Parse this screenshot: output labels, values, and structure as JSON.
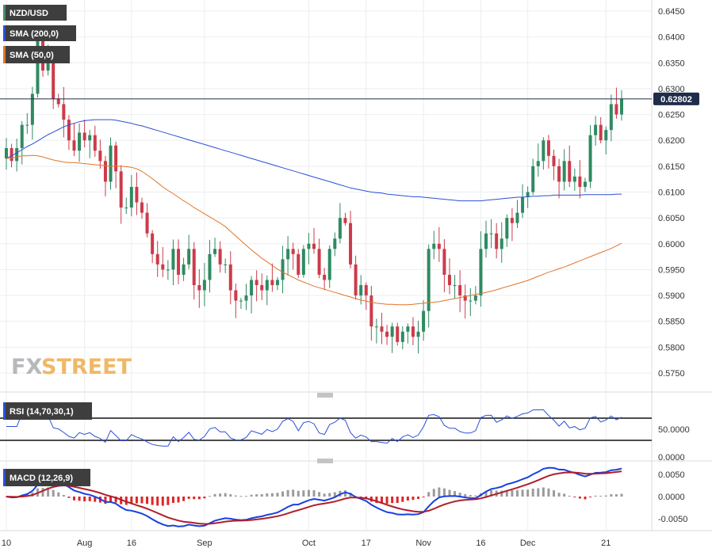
{
  "chart_data": {
    "type": "candlestick",
    "symbol": "NZD/USD",
    "current_price_label": "0.62802",
    "x_tick_labels": [
      {
        "label": "10",
        "index": 0
      },
      {
        "label": "Aug",
        "index": 15
      },
      {
        "label": "16",
        "index": 24
      },
      {
        "label": "Sep",
        "index": 38
      },
      {
        "label": "Oct",
        "index": 58
      },
      {
        "label": "17",
        "index": 69
      },
      {
        "label": "Nov",
        "index": 80
      },
      {
        "label": "16",
        "index": 91
      },
      {
        "label": "Dec",
        "index": 100
      },
      {
        "label": "21",
        "index": 115
      }
    ],
    "price_panel": {
      "y_ticks": [
        "0.6450",
        "0.6400",
        "0.6350",
        "0.6300",
        "0.6250",
        "0.6200",
        "0.6150",
        "0.6100",
        "0.6050",
        "0.6000",
        "0.5950",
        "0.5900",
        "0.5850",
        "0.5800",
        "0.5750"
      ],
      "ylim": [
        0.5715,
        0.6475
      ],
      "legend": [
        {
          "label": "NZD/USD",
          "color": "#4a8a6a"
        },
        {
          "label": "SMA (200,0)",
          "color": "#2b4fd8"
        },
        {
          "label": "SMA (50,0)",
          "color": "#e0752a"
        }
      ],
      "close": [
        0.6185,
        0.616,
        0.6185,
        0.623,
        0.623,
        0.629,
        0.6395,
        0.6335,
        0.636,
        0.628,
        0.627,
        0.624,
        0.62,
        0.618,
        0.6215,
        0.62,
        0.621,
        0.618,
        0.616,
        0.612,
        0.619,
        0.614,
        0.607,
        0.607,
        0.611,
        0.608,
        0.606,
        0.602,
        0.598,
        0.596,
        0.595,
        0.595,
        0.599,
        0.594,
        0.596,
        0.599,
        0.592,
        0.591,
        0.593,
        0.598,
        0.599,
        0.596,
        0.596,
        0.591,
        0.589,
        0.589,
        0.59,
        0.593,
        0.592,
        0.591,
        0.593,
        0.592,
        0.593,
        0.597,
        0.599,
        0.598,
        0.594,
        0.599,
        0.6,
        0.599,
        0.594,
        0.593,
        0.599,
        0.601,
        0.605,
        0.604,
        0.596,
        0.59,
        0.592,
        0.59,
        0.584,
        0.584,
        0.583,
        0.582,
        0.584,
        0.581,
        0.583,
        0.584,
        0.582,
        0.583,
        0.587,
        0.599,
        0.6,
        0.599,
        0.594,
        0.592,
        0.592,
        0.59,
        0.589,
        0.589,
        0.59,
        0.599,
        0.602,
        0.602,
        0.599,
        0.601,
        0.605,
        0.604,
        0.606,
        0.609,
        0.61,
        0.615,
        0.616,
        0.62,
        0.617,
        0.615,
        0.612,
        0.616,
        0.612,
        0.613,
        0.611,
        0.612,
        0.621,
        0.623,
        0.62,
        0.622,
        0.627,
        0.625,
        0.628
      ],
      "sma200": [
        0.6165,
        0.617,
        0.6176,
        0.6182,
        0.6188,
        0.6193,
        0.6199,
        0.6205,
        0.6211,
        0.6216,
        0.6221,
        0.6226,
        0.623,
        0.6233,
        0.6236,
        0.6238,
        0.6239,
        0.624,
        0.624,
        0.624,
        0.624,
        0.6239,
        0.6237,
        0.6235,
        0.6233,
        0.623,
        0.6228,
        0.6225,
        0.6222,
        0.6219,
        0.6216,
        0.6213,
        0.621,
        0.6207,
        0.6204,
        0.6201,
        0.6198,
        0.6195,
        0.6192,
        0.6189,
        0.6186,
        0.6183,
        0.618,
        0.6177,
        0.6174,
        0.6171,
        0.6168,
        0.6165,
        0.6162,
        0.6159,
        0.6156,
        0.6153,
        0.615,
        0.6147,
        0.6144,
        0.6141,
        0.6138,
        0.6135,
        0.6132,
        0.6129,
        0.6126,
        0.6123,
        0.612,
        0.6117,
        0.6114,
        0.6111,
        0.6108,
        0.6106,
        0.6104,
        0.6102,
        0.61,
        0.6099,
        0.6098,
        0.6096,
        0.6095,
        0.6094,
        0.6093,
        0.6092,
        0.6091,
        0.6091,
        0.609,
        0.6089,
        0.6088,
        0.6087,
        0.6086,
        0.6085,
        0.6084,
        0.6083,
        0.6083,
        0.6083,
        0.6083,
        0.6083,
        0.6084,
        0.6085,
        0.6086,
        0.6087,
        0.6088,
        0.6089,
        0.609,
        0.609,
        0.6091,
        0.6092,
        0.6092,
        0.6093,
        0.6093,
        0.6094,
        0.6094,
        0.6094,
        0.6094,
        0.6094,
        0.6094,
        0.6095,
        0.6095,
        0.6095,
        0.6095,
        0.6095,
        0.6095,
        0.6096,
        0.6096
      ],
      "sma50": [
        0.6165,
        0.6166,
        0.6168,
        0.617,
        0.617,
        0.6171,
        0.617,
        0.6168,
        0.6165,
        0.6162,
        0.616,
        0.6158,
        0.6157,
        0.6157,
        0.6156,
        0.6155,
        0.6154,
        0.6153,
        0.6152,
        0.6151,
        0.615,
        0.615,
        0.615,
        0.6149,
        0.6148,
        0.6145,
        0.614,
        0.6133,
        0.6126,
        0.6118,
        0.611,
        0.6103,
        0.6097,
        0.609,
        0.6083,
        0.6077,
        0.607,
        0.6064,
        0.6058,
        0.6052,
        0.6046,
        0.604,
        0.6033,
        0.6024,
        0.6015,
        0.6006,
        0.5997,
        0.5988,
        0.598,
        0.5972,
        0.5965,
        0.5958,
        0.5951,
        0.5945,
        0.594,
        0.5935,
        0.593,
        0.5926,
        0.5922,
        0.5918,
        0.5915,
        0.5912,
        0.5909,
        0.5906,
        0.5903,
        0.59,
        0.5897,
        0.5894,
        0.5891,
        0.5889,
        0.5887,
        0.5885,
        0.5884,
        0.5883,
        0.5883,
        0.5882,
        0.5882,
        0.5882,
        0.5883,
        0.5884,
        0.5885,
        0.5886,
        0.5887,
        0.5888,
        0.589,
        0.5892,
        0.5894,
        0.5896,
        0.5898,
        0.59,
        0.5902,
        0.5904,
        0.5906,
        0.5908,
        0.5911,
        0.5914,
        0.5917,
        0.592,
        0.5923,
        0.5926,
        0.5929,
        0.5933,
        0.5937,
        0.5941,
        0.5945,
        0.5948,
        0.5952,
        0.5955,
        0.5959,
        0.5963,
        0.5967,
        0.5971,
        0.5975,
        0.5979,
        0.5983,
        0.5987,
        0.5991,
        0.5996,
        0.6001
      ]
    },
    "rsi_panel": {
      "legend": "RSI (14,70,30,1)",
      "y_ticks": [
        "50.0000",
        "0.0000"
      ],
      "overbought_line": 70,
      "oversold_line": 30,
      "ylim": [
        0,
        100
      ]
    },
    "macd_panel": {
      "legend": "MACD (12,26,9)",
      "y_ticks": [
        "0.0050",
        "0.0000",
        "-0.0050"
      ],
      "ylim": [
        -0.0073,
        0.0073
      ]
    }
  }
}
